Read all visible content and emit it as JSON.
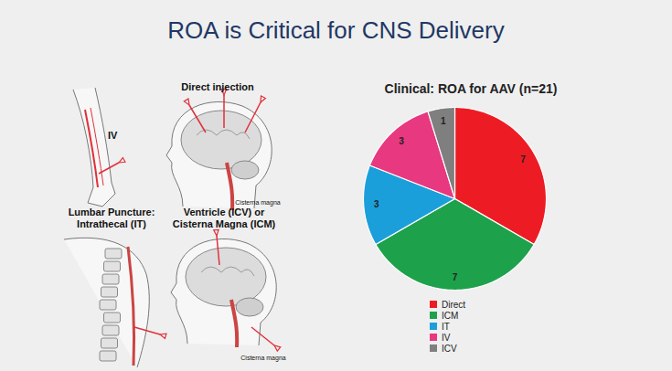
{
  "title": "ROA is Critical for CNS Delivery",
  "panels": [
    {
      "label": [
        "IV"
      ]
    },
    {
      "label": [
        "Direct injection"
      ],
      "annotation": "Cisterna magna"
    },
    {
      "label": [
        "Lumbar Puncture:",
        "Intrathecal (IT)"
      ]
    },
    {
      "label": [
        "Ventricle (ICV) or",
        "Cisterna Magna (ICM)"
      ],
      "annotation": "Cisterna magna"
    }
  ],
  "chart_data": {
    "type": "pie",
    "title": "Clinical: ROA for AAV (n=21)",
    "categories": [
      "Direct",
      "ICM",
      "IT",
      "IV",
      "ICV"
    ],
    "values": [
      7,
      7,
      3,
      3,
      1
    ],
    "colors": [
      "#ed1c24",
      "#1ea14b",
      "#1b9fda",
      "#e8387f",
      "#7f7f7f"
    ],
    "data_labels": true,
    "legend": "bottom"
  }
}
